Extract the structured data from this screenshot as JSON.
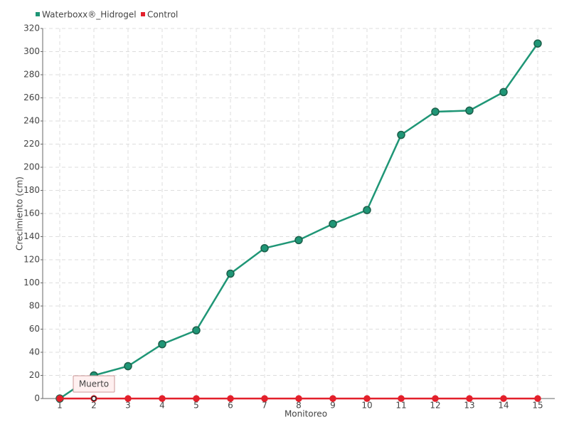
{
  "chart_data": {
    "type": "line",
    "categories": [
      "1",
      "2",
      "3",
      "4",
      "5",
      "6",
      "7",
      "8",
      "9",
      "10",
      "11",
      "12",
      "13",
      "14",
      "15"
    ],
    "series": [
      {
        "name": "Waterboxx®_Hidrogel",
        "color": "#1f9676",
        "values": [
          0,
          20,
          28,
          47,
          59,
          108,
          130,
          137,
          151,
          163,
          228,
          248,
          249,
          265,
          307
        ]
      },
      {
        "name": "Control",
        "color": "#e3202b",
        "values": [
          0,
          0,
          0,
          0,
          0,
          0,
          0,
          0,
          0,
          0,
          0,
          0,
          0,
          0,
          0
        ]
      }
    ],
    "ylim": [
      0,
      320
    ],
    "yticks": [
      0,
      20,
      40,
      60,
      80,
      100,
      120,
      140,
      160,
      180,
      200,
      220,
      240,
      260,
      280,
      300,
      320
    ],
    "y_label": "Crecimiento (cm)",
    "x_label": "Monitoreo",
    "annotation": "Muerto",
    "grid": true
  }
}
